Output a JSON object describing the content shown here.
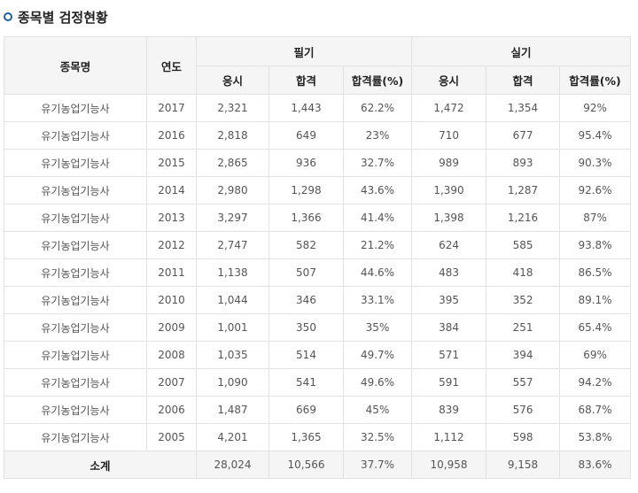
{
  "title": "종목별 검정현황",
  "header": {
    "name": "종목명",
    "year": "연도",
    "written": "필기",
    "practical": "실기",
    "apply": "응시",
    "pass": "합격",
    "rate": "합격률(%)"
  },
  "rows": [
    [
      "유기농업기능사",
      "2017",
      "2,321",
      "1,443",
      "62.2%",
      "1,472",
      "1,354",
      "92%"
    ],
    [
      "유기농업기능사",
      "2016",
      "2,818",
      "649",
      "23%",
      "710",
      "677",
      "95.4%"
    ],
    [
      "유기농업기능사",
      "2015",
      "2,865",
      "936",
      "32.7%",
      "989",
      "893",
      "90.3%"
    ],
    [
      "유기농업기능사",
      "2014",
      "2,980",
      "1,298",
      "43.6%",
      "1,390",
      "1,287",
      "92.6%"
    ],
    [
      "유기농업기능사",
      "2013",
      "3,297",
      "1,366",
      "41.4%",
      "1,398",
      "1,216",
      "87%"
    ],
    [
      "유기농업기능사",
      "2012",
      "2,747",
      "582",
      "21.2%",
      "624",
      "585",
      "93.8%"
    ],
    [
      "유기농업기능사",
      "2011",
      "1,138",
      "507",
      "44.6%",
      "483",
      "418",
      "86.5%"
    ],
    [
      "유기농업기능사",
      "2010",
      "1,044",
      "346",
      "33.1%",
      "395",
      "352",
      "89.1%"
    ],
    [
      "유기농업기능사",
      "2009",
      "1,001",
      "350",
      "35%",
      "384",
      "251",
      "65.4%"
    ],
    [
      "유기농업기능사",
      "2008",
      "1,035",
      "514",
      "49.7%",
      "571",
      "394",
      "69%"
    ],
    [
      "유기농업기능사",
      "2007",
      "1,090",
      "541",
      "49.6%",
      "591",
      "557",
      "94.2%"
    ],
    [
      "유기농업기능사",
      "2006",
      "1,487",
      "669",
      "45%",
      "839",
      "576",
      "68.7%"
    ],
    [
      "유기농업기능사",
      "2005",
      "4,201",
      "1,365",
      "32.5%",
      "1,112",
      "598",
      "53.8%"
    ]
  ],
  "total": {
    "label": "소계",
    "values": [
      "28,024",
      "10,566",
      "37.7%",
      "10,958",
      "9,158",
      "83.6%"
    ]
  }
}
